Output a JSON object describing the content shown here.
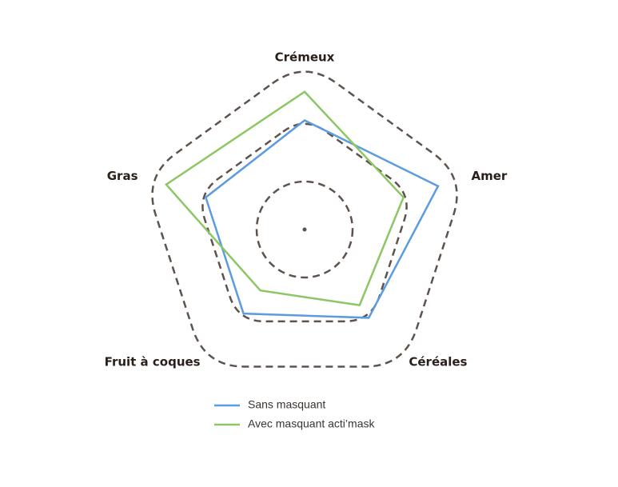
{
  "chart_data": {
    "type": "radar",
    "categories": [
      "Crémeux",
      "Amer",
      "Céréales",
      "Fruit à coques",
      "Gras"
    ],
    "ylim": [
      0,
      3
    ],
    "series": [
      {
        "name": "Sans masquant",
        "color": "#5b9be0",
        "values": [
          2.1,
          2.7,
          2.1,
          2.0,
          2.0
        ]
      },
      {
        "name": "Avec masquant acti’mask",
        "color": "#8cc665",
        "values": [
          2.65,
          2.0,
          1.8,
          1.45,
          2.8
        ]
      }
    ]
  }
}
